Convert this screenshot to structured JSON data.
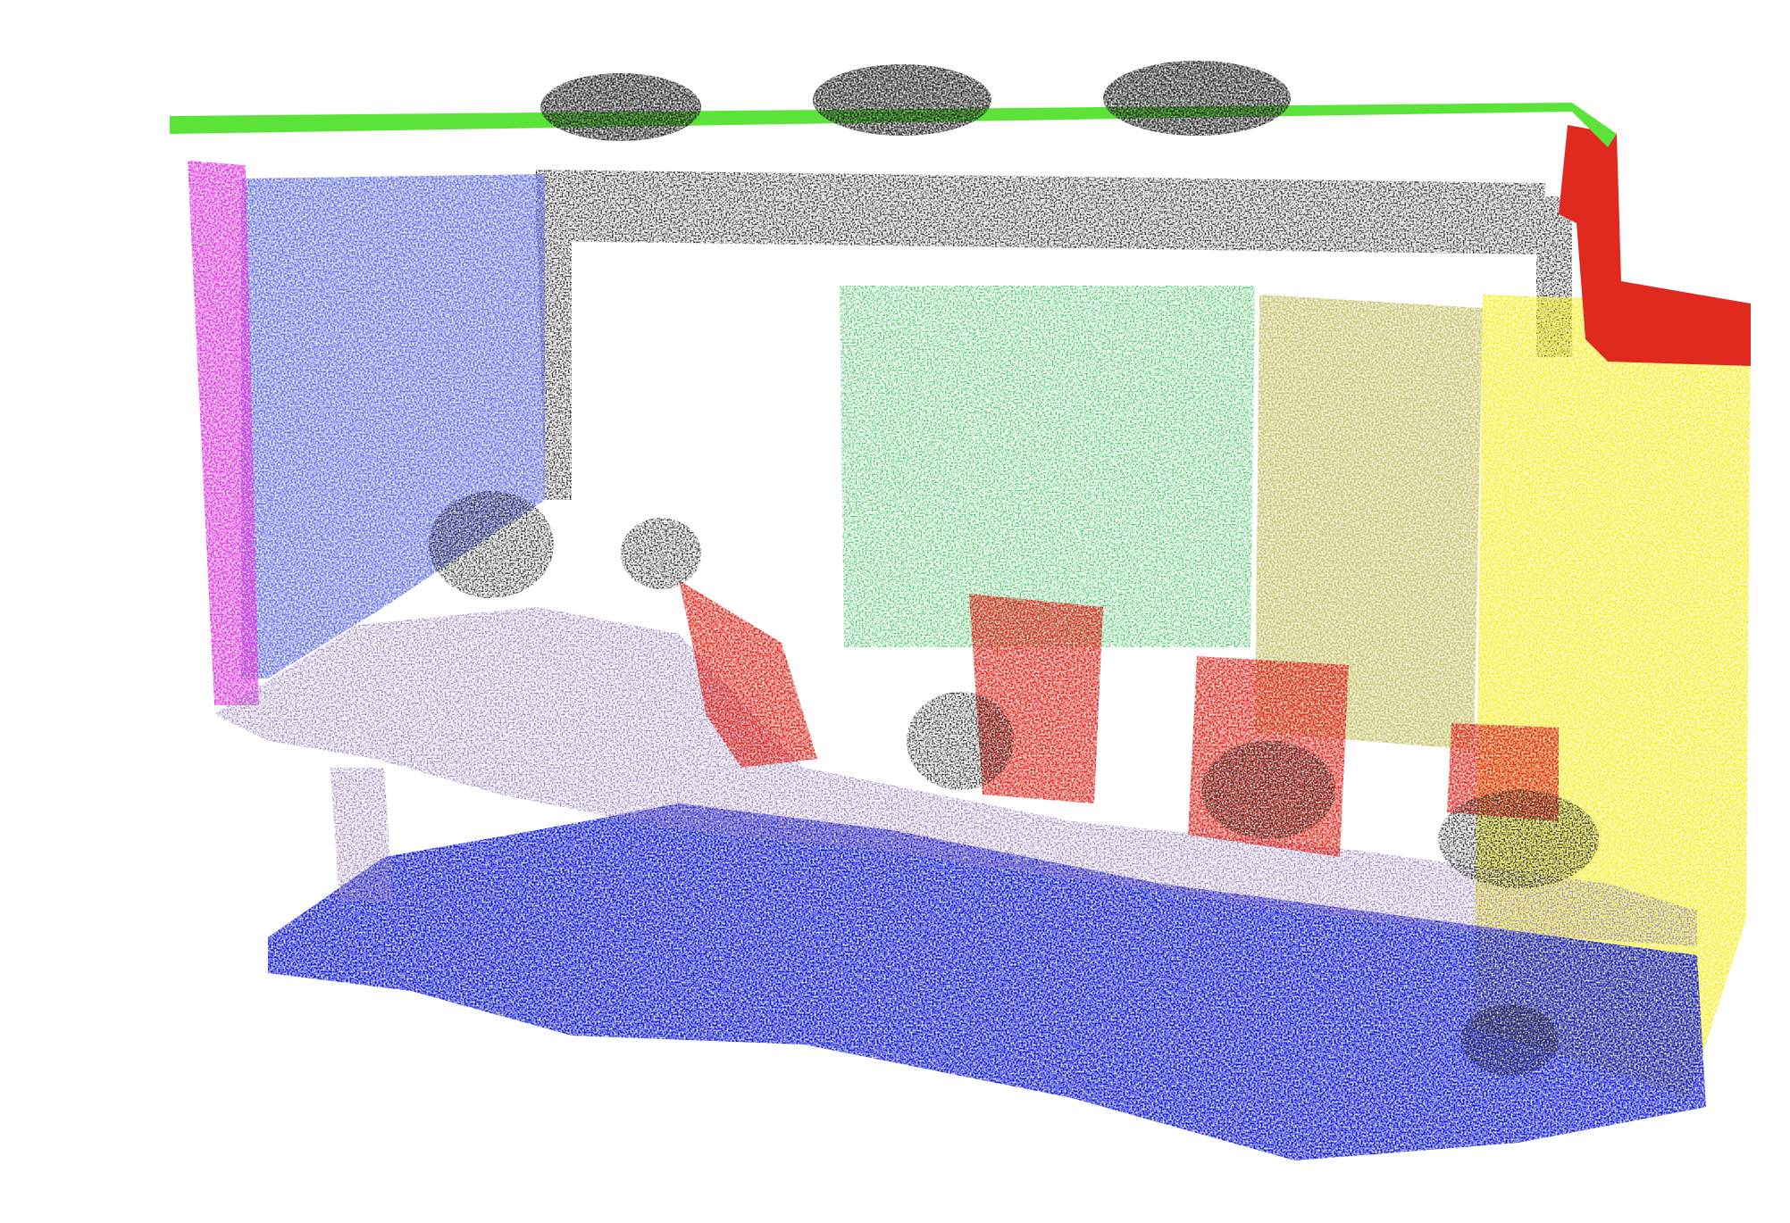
{
  "scene": {
    "kind": "semantic-segmentation-point-cloud",
    "background_color": "#ffffff",
    "segments": [
      {
        "name": "ceiling",
        "color": "#5be33a"
      },
      {
        "name": "ceiling-light",
        "color": "#2b2b2b"
      },
      {
        "name": "left-side-wall",
        "color": "#e03ae0"
      },
      {
        "name": "whiteboard",
        "color": "#6a76e8"
      },
      {
        "name": "wall-clutter",
        "color": "#2b2b2b"
      },
      {
        "name": "window",
        "color": "#c8c8c8"
      },
      {
        "name": "door",
        "color": "#4cc86a"
      },
      {
        "name": "right-wall",
        "color": "#c8c46e"
      },
      {
        "name": "column",
        "color": "#f5f032"
      },
      {
        "name": "chair",
        "color": "#e02a20"
      },
      {
        "name": "table",
        "color": "#9c84c0"
      },
      {
        "name": "floor",
        "color": "#0a14d8"
      }
    ]
  }
}
